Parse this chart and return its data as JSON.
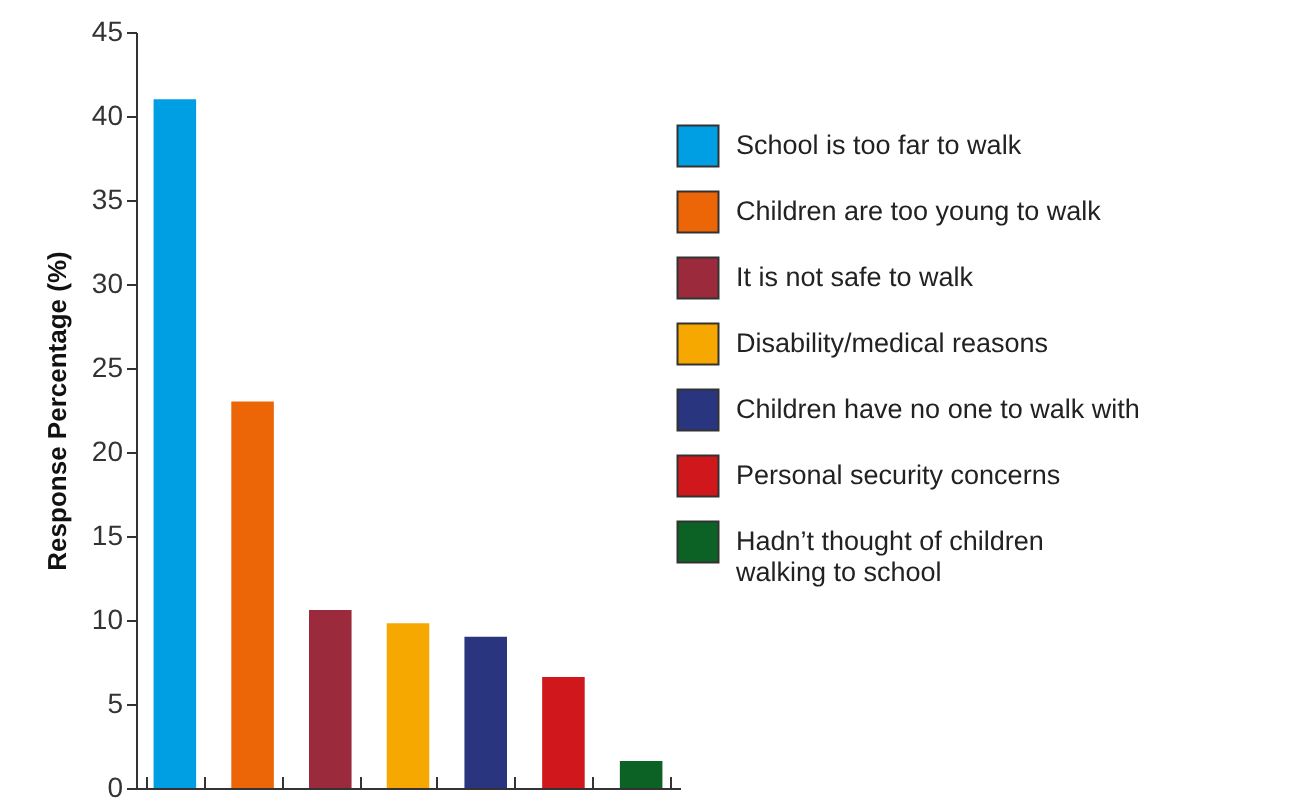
{
  "chart_data": {
    "type": "bar",
    "ylabel": "Response Percentage (%)",
    "categories": [
      null,
      null,
      null,
      null,
      null,
      null,
      null
    ],
    "series": [
      {
        "name": "School is too far to walk",
        "color": "#009fe3",
        "values": [
          41,
          null,
          null,
          null,
          null,
          null,
          null
        ]
      },
      {
        "name": "Children are too young to walk",
        "color": "#ec6608",
        "values": [
          null,
          23,
          null,
          null,
          null,
          null,
          null
        ]
      },
      {
        "name": "It is not safe to walk",
        "color": "#9b2a3d",
        "values": [
          null,
          null,
          10.6,
          null,
          null,
          null,
          null
        ]
      },
      {
        "name": "Disability/medical reasons",
        "color": "#f6a800",
        "values": [
          null,
          null,
          null,
          9.8,
          null,
          null,
          null
        ]
      },
      {
        "name": "Children have no one to walk with",
        "color": "#29357f",
        "values": [
          null,
          null,
          null,
          null,
          9.0,
          null,
          null
        ]
      },
      {
        "name": "Personal security concerns",
        "color": "#d0181c",
        "values": [
          null,
          null,
          null,
          null,
          null,
          6.6,
          null
        ]
      },
      {
        "name": "Hadn’t thought of children walking to school",
        "color": "#0b6224",
        "values": [
          null,
          null,
          null,
          null,
          null,
          null,
          1.6
        ]
      }
    ],
    "ylim": [
      0,
      45
    ],
    "yticks": [
      0,
      5,
      10,
      15,
      20,
      25,
      30,
      35,
      40,
      45
    ],
    "legend": "right",
    "tick_labels": "y",
    "grid": false
  }
}
